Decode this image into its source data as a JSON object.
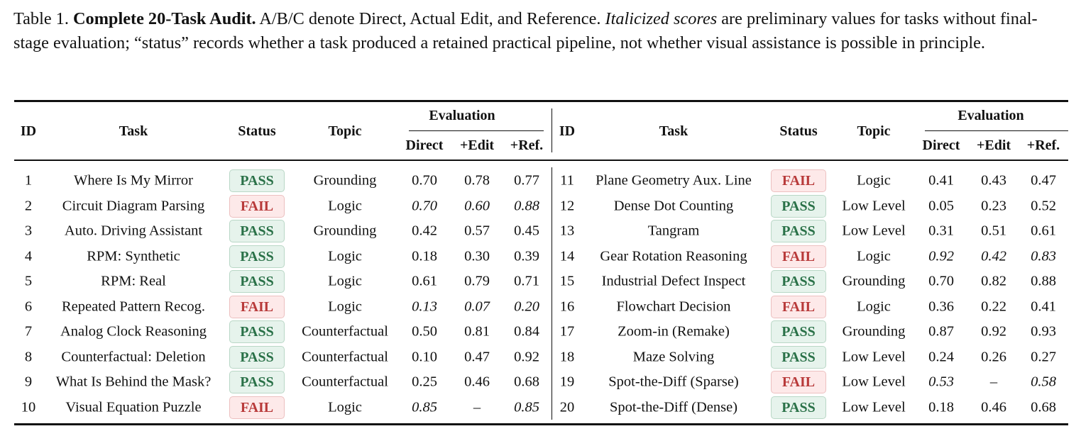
{
  "caption": {
    "label": "Table 1.",
    "title": "Complete 20-Task Audit.",
    "text_1": "A/B/C denote Direct, Actual Edit, and Reference.",
    "italic_phrase": "Italicized scores",
    "text_2": "are preliminary values for tasks without final-stage evaluation; “status” records whether a task produced a retained practical pipeline, not whether visual assistance is possible in principle."
  },
  "headers": {
    "id": "ID",
    "task": "Task",
    "status": "Status",
    "topic": "Topic",
    "evaluation": "Evaluation",
    "direct": "Direct",
    "edit": "+Edit",
    "ref": "+Ref."
  },
  "colors": {
    "pass_bg": "#e6f3ec",
    "pass_text": "#2a7148",
    "fail_bg": "#fde9e9",
    "fail_text": "#b83a3a"
  },
  "rows": [
    {
      "id": "1",
      "task": "Where Is My Mirror",
      "status": "PASS",
      "topic": "Grounding",
      "direct": "0.70",
      "edit": "0.78",
      "ref": "0.77",
      "italic": false
    },
    {
      "id": "2",
      "task": "Circuit Diagram Parsing",
      "status": "FAIL",
      "topic": "Logic",
      "direct": "0.70",
      "edit": "0.60",
      "ref": "0.88",
      "italic": true
    },
    {
      "id": "3",
      "task": "Auto. Driving Assistant",
      "status": "PASS",
      "topic": "Grounding",
      "direct": "0.42",
      "edit": "0.57",
      "ref": "0.45",
      "italic": false
    },
    {
      "id": "4",
      "task": "RPM: Synthetic",
      "status": "PASS",
      "topic": "Logic",
      "direct": "0.18",
      "edit": "0.30",
      "ref": "0.39",
      "italic": false
    },
    {
      "id": "5",
      "task": "RPM: Real",
      "status": "PASS",
      "topic": "Logic",
      "direct": "0.61",
      "edit": "0.79",
      "ref": "0.71",
      "italic": false
    },
    {
      "id": "6",
      "task": "Repeated Pattern Recog.",
      "status": "FAIL",
      "topic": "Logic",
      "direct": "0.13",
      "edit": "0.07",
      "ref": "0.20",
      "italic": true
    },
    {
      "id": "7",
      "task": "Analog Clock Reasoning",
      "status": "PASS",
      "topic": "Counterfactual",
      "direct": "0.50",
      "edit": "0.81",
      "ref": "0.84",
      "italic": false
    },
    {
      "id": "8",
      "task": "Counterfactual: Deletion",
      "status": "PASS",
      "topic": "Counterfactual",
      "direct": "0.10",
      "edit": "0.47",
      "ref": "0.92",
      "italic": false
    },
    {
      "id": "9",
      "task": "What Is Behind the Mask?",
      "status": "PASS",
      "topic": "Counterfactual",
      "direct": "0.25",
      "edit": "0.46",
      "ref": "0.68",
      "italic": false
    },
    {
      "id": "10",
      "task": "Visual Equation Puzzle",
      "status": "FAIL",
      "topic": "Logic",
      "direct": "0.85",
      "edit": "–",
      "ref": "0.85",
      "italic": true
    },
    {
      "id": "11",
      "task": "Plane Geometry Aux. Line",
      "status": "FAIL",
      "topic": "Logic",
      "direct": "0.41",
      "edit": "0.43",
      "ref": "0.47",
      "italic": false
    },
    {
      "id": "12",
      "task": "Dense Dot Counting",
      "status": "PASS",
      "topic": "Low Level",
      "direct": "0.05",
      "edit": "0.23",
      "ref": "0.52",
      "italic": false
    },
    {
      "id": "13",
      "task": "Tangram",
      "status": "PASS",
      "topic": "Low Level",
      "direct": "0.31",
      "edit": "0.51",
      "ref": "0.61",
      "italic": false
    },
    {
      "id": "14",
      "task": "Gear Rotation Reasoning",
      "status": "FAIL",
      "topic": "Logic",
      "direct": "0.92",
      "edit": "0.42",
      "ref": "0.83",
      "italic": true
    },
    {
      "id": "15",
      "task": "Industrial Defect Inspect",
      "status": "PASS",
      "topic": "Grounding",
      "direct": "0.70",
      "edit": "0.82",
      "ref": "0.88",
      "italic": false
    },
    {
      "id": "16",
      "task": "Flowchart Decision",
      "status": "FAIL",
      "topic": "Logic",
      "direct": "0.36",
      "edit": "0.22",
      "ref": "0.41",
      "italic": false
    },
    {
      "id": "17",
      "task": "Zoom-in (Remake)",
      "status": "PASS",
      "topic": "Grounding",
      "direct": "0.87",
      "edit": "0.92",
      "ref": "0.93",
      "italic": false
    },
    {
      "id": "18",
      "task": "Maze Solving",
      "status": "PASS",
      "topic": "Low Level",
      "direct": "0.24",
      "edit": "0.26",
      "ref": "0.27",
      "italic": false
    },
    {
      "id": "19",
      "task": "Spot-the-Diff (Sparse)",
      "status": "FAIL",
      "topic": "Low Level",
      "direct": "0.53",
      "edit": "–",
      "ref": "0.58",
      "italic": true
    },
    {
      "id": "20",
      "task": "Spot-the-Diff (Dense)",
      "status": "PASS",
      "topic": "Low Level",
      "direct": "0.18",
      "edit": "0.46",
      "ref": "0.68",
      "italic": false
    }
  ]
}
